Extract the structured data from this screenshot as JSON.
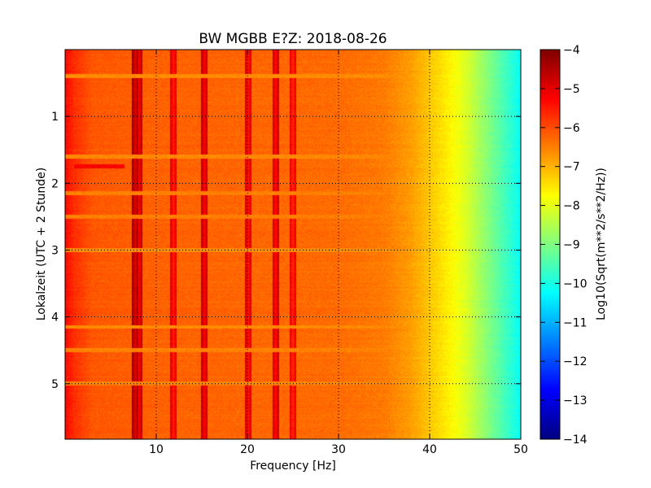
{
  "chart_data": {
    "type": "heatmap",
    "title": "BW MGBB E?Z: 2018-08-26",
    "xlabel": "Frequency [Hz]",
    "ylabel": "Lokalzeit (UTC + 2 Stunde)",
    "xlim": [
      0,
      50
    ],
    "ylim": [
      0,
      5.83
    ],
    "y_inverted": true,
    "x_ticks": [
      10,
      20,
      30,
      40,
      50
    ],
    "x_tick_labels": [
      "10",
      "20",
      "30",
      "40",
      "50"
    ],
    "y_ticks": [
      1,
      2,
      3,
      4,
      5
    ],
    "y_tick_labels": [
      "1",
      "2",
      "3",
      "4",
      "5"
    ],
    "grid": true,
    "colormap": "jet",
    "colorbar": {
      "label": "Log10(Sqrt(m**2/s**2/Hz))",
      "range": [
        -14,
        -4
      ],
      "ticks": [
        -4,
        -5,
        -6,
        -7,
        -8,
        -9,
        -10,
        -11,
        -12,
        -13,
        -14
      ],
      "tick_labels": [
        "−4",
        "−5",
        "−6",
        "−7",
        "−8",
        "−9",
        "−10",
        "−11",
        "−12",
        "−13",
        "−14"
      ]
    },
    "spectral_profile": {
      "frequency_hz": [
        0,
        1,
        3,
        10,
        20,
        30,
        35,
        38,
        40,
        42,
        44,
        46,
        48,
        50
      ],
      "log_amplitude": [
        -5.3,
        -5.7,
        -6.1,
        -6.2,
        -6.25,
        -6.3,
        -6.45,
        -6.8,
        -7.2,
        -7.6,
        -8.1,
        -8.8,
        -9.5,
        -10.2
      ]
    },
    "spectral_lines": [
      {
        "frequency_hz": 7.7,
        "log_amplitude": -5.0
      },
      {
        "frequency_hz": 8.1,
        "log_amplitude": -5.3
      },
      {
        "frequency_hz": 11.9,
        "log_amplitude": -5.6
      },
      {
        "frequency_hz": 15.3,
        "log_amplitude": -5.3
      },
      {
        "frequency_hz": 20.1,
        "log_amplitude": -5.5
      },
      {
        "frequency_hz": 23.1,
        "log_amplitude": -5.4
      },
      {
        "frequency_hz": 25.0,
        "log_amplitude": -5.7
      }
    ],
    "time_bands": [
      {
        "hour": 0.4,
        "log_amplitude": -6.6
      },
      {
        "hour": 1.6,
        "log_amplitude": -6.6
      },
      {
        "hour": 2.15,
        "log_amplitude": -6.5
      },
      {
        "hour": 2.5,
        "log_amplitude": -6.5
      },
      {
        "hour": 3.0,
        "log_amplitude": -6.6
      },
      {
        "hour": 4.15,
        "log_amplitude": -6.6
      },
      {
        "hour": 4.5,
        "log_amplitude": -6.5
      },
      {
        "hour": 5.0,
        "log_amplitude": -6.5
      }
    ],
    "anomalies": [
      {
        "hour": 1.75,
        "freq_range_hz": [
          1,
          6.5
        ],
        "log_amplitude": -5.2
      }
    ]
  }
}
